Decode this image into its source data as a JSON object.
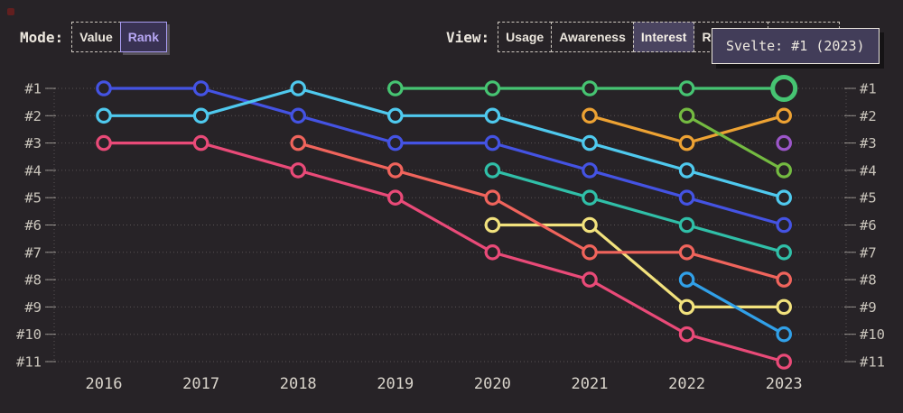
{
  "app": {
    "background": "#272327"
  },
  "mode_control": {
    "label": "Mode:",
    "options": [
      {
        "label": "Value",
        "selected": false
      },
      {
        "label": "Rank",
        "selected": true
      }
    ]
  },
  "view_control": {
    "label": "View:",
    "options": [
      {
        "label": "Usage",
        "selected": false
      },
      {
        "label": "Awareness",
        "selected": false
      },
      {
        "label": "Interest",
        "selected": true
      },
      {
        "label": "Retention",
        "selected": false
      },
      {
        "label": "Positivity",
        "selected": false
      }
    ]
  },
  "tooltip": {
    "text": "Svelte: #1 (2023)"
  },
  "chart_data": {
    "type": "line",
    "subtype": "bump-rank",
    "title": "",
    "xlabel": "",
    "ylabel": "rank",
    "grid": "dotted-horizontal",
    "x": [
      2016,
      2017,
      2018,
      2019,
      2020,
      2021,
      2022,
      2023
    ],
    "y_rank_labels": [
      "#1",
      "#2",
      "#3",
      "#4",
      "#5",
      "#6",
      "#7",
      "#8",
      "#9",
      "#10",
      "#11"
    ],
    "y_axis_sides": [
      "left",
      "right"
    ],
    "series": [
      {
        "name": "indigo",
        "color": "#4453e3",
        "values": [
          1,
          1,
          2,
          3,
          3,
          4,
          5,
          6
        ]
      },
      {
        "name": "cyan",
        "color": "#4fc9ee",
        "values": [
          2,
          2,
          1,
          2,
          2,
          3,
          4,
          5
        ]
      },
      {
        "name": "pink",
        "color": "#e94a78",
        "values": [
          3,
          3,
          4,
          5,
          7,
          8,
          10,
          11
        ]
      },
      {
        "name": "yellow",
        "color": "#f2e27d",
        "values": [
          null,
          null,
          null,
          null,
          6,
          6,
          9,
          9
        ]
      },
      {
        "name": "teal",
        "color": "#30bfa8",
        "values": [
          null,
          null,
          null,
          null,
          4,
          5,
          6,
          7
        ]
      },
      {
        "name": "salmon",
        "color": "#f0645c",
        "values": [
          null,
          null,
          3,
          4,
          5,
          7,
          7,
          8
        ]
      },
      {
        "name": "Svelte",
        "color": "#46c472",
        "values": [
          null,
          null,
          null,
          1,
          1,
          1,
          1,
          1
        ]
      },
      {
        "name": "amber",
        "color": "#eda233",
        "values": [
          null,
          null,
          null,
          null,
          null,
          2,
          3,
          2
        ]
      },
      {
        "name": "apple-green",
        "color": "#74ba41",
        "values": [
          null,
          null,
          null,
          null,
          null,
          null,
          2,
          4
        ]
      },
      {
        "name": "sky-blue",
        "color": "#31a0e8",
        "values": [
          null,
          null,
          null,
          null,
          null,
          null,
          8,
          10
        ]
      },
      {
        "name": "purple",
        "color": "#9c56c9",
        "values": [
          null,
          null,
          null,
          null,
          null,
          null,
          null,
          3
        ]
      }
    ],
    "highlight": {
      "series": "Svelte",
      "year": 2023,
      "rank": 1,
      "label": "Svelte: #1 (2023)"
    }
  }
}
